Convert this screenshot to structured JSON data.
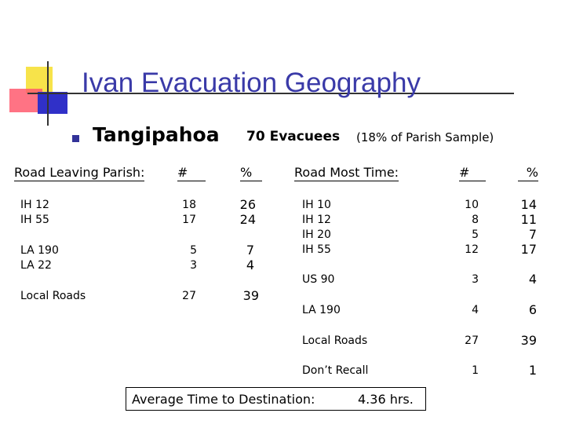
{
  "title": "Ivan Evacuation Geography",
  "subtitle": {
    "region": "Tangipahoa",
    "evacuees": "70 Evacuees",
    "sample_note": "(18% of Parish Sample)"
  },
  "colors": {
    "title": "#3a3aa8",
    "bullet": "#333399",
    "accent_yellow": "#f7e34a",
    "accent_red": "#ff5a6e",
    "accent_blue": "#3030c8"
  },
  "left_table": {
    "headers": {
      "road": "Road Leaving Parish:",
      "count": "#",
      "pct": "%"
    },
    "rows": [
      {
        "road": "IH 12",
        "count": "18",
        "pct": "26"
      },
      {
        "road": "IH 55",
        "count": "17",
        "pct": "24"
      },
      {
        "road": "LA 190",
        "count": "5",
        "pct": "7"
      },
      {
        "road": "LA 22",
        "count": "3",
        "pct": "4"
      },
      {
        "road": "Local Roads",
        "count": "27",
        "pct": "39"
      }
    ]
  },
  "right_table": {
    "headers": {
      "road": "Road Most Time:",
      "count": "#",
      "pct": "%"
    },
    "rows": [
      {
        "road": "IH 10",
        "count": "10",
        "pct": "14"
      },
      {
        "road": "IH 12",
        "count": "8",
        "pct": "11"
      },
      {
        "road": "IH 20",
        "count": "5",
        "pct": "7"
      },
      {
        "road": "IH 55",
        "count": "12",
        "pct": "17"
      },
      {
        "road": "US 90",
        "count": "3",
        "pct": "4"
      },
      {
        "road": "LA 190",
        "count": "4",
        "pct": "6"
      },
      {
        "road": "Local Roads",
        "count": "27",
        "pct": "39"
      },
      {
        "road": "Don’t Recall",
        "count": "1",
        "pct": "1"
      }
    ]
  },
  "footer": {
    "label": "Average Time to Destination:",
    "value": "4.36 hrs."
  }
}
